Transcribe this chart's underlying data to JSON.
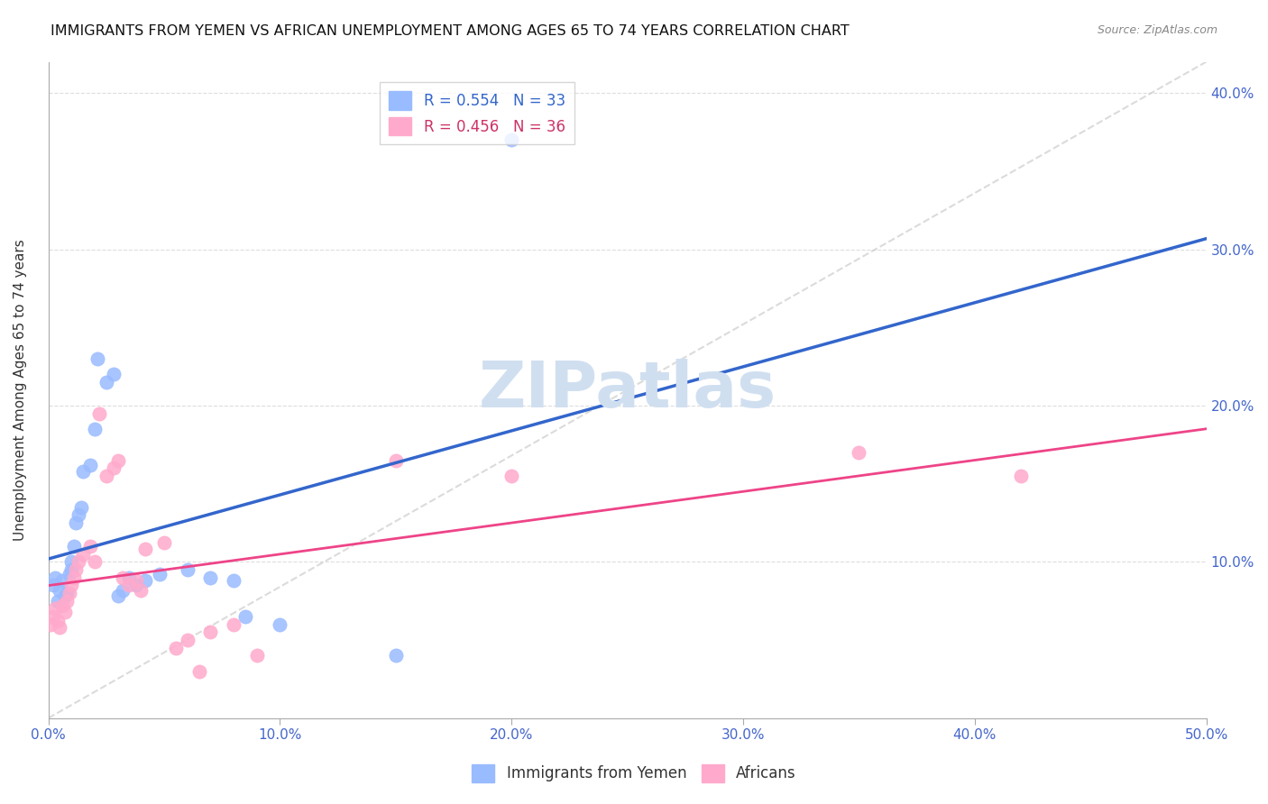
{
  "title": "IMMIGRANTS FROM YEMEN VS AFRICAN UNEMPLOYMENT AMONG AGES 65 TO 74 YEARS CORRELATION CHART",
  "source": "Source: ZipAtlas.com",
  "ylabel": "Unemployment Among Ages 65 to 74 years",
  "x_min": 0.0,
  "x_max": 0.5,
  "y_min": 0.0,
  "y_max": 0.42,
  "x_ticks": [
    0.0,
    0.1,
    0.2,
    0.3,
    0.4,
    0.5
  ],
  "x_tick_labels": [
    "0.0%",
    "10.0%",
    "20.0%",
    "30.0%",
    "40.0%",
    "50.0%"
  ],
  "y_ticks_right": [
    0.1,
    0.2,
    0.3,
    0.4
  ],
  "y_tick_labels_right": [
    "10.0%",
    "20.0%",
    "30.0%",
    "40.0%"
  ],
  "legend_label1": "R = 0.554   N = 33",
  "legend_label2": "R = 0.456   N = 36",
  "legend_label1_color": "#3366cc",
  "legend_label2_color": "#cc3366",
  "series1_color": "#99bbff",
  "series2_color": "#ffaacc",
  "line1_color": "#3366cc",
  "line2_color": "#ee4488",
  "diagonal_color": "#cccccc",
  "watermark": "ZIPatlas",
  "watermark_color": "#d0dff0",
  "series1_x": [
    0.002,
    0.003,
    0.004,
    0.005,
    0.006,
    0.007,
    0.008,
    0.009,
    0.01,
    0.01,
    0.011,
    0.012,
    0.013,
    0.014,
    0.015,
    0.018,
    0.02,
    0.021,
    0.025,
    0.028,
    0.03,
    0.032,
    0.035,
    0.038,
    0.042,
    0.048,
    0.06,
    0.07,
    0.08,
    0.085,
    0.1,
    0.15,
    0.2
  ],
  "series1_y": [
    0.085,
    0.09,
    0.075,
    0.082,
    0.088,
    0.078,
    0.08,
    0.092,
    0.095,
    0.1,
    0.11,
    0.125,
    0.13,
    0.135,
    0.158,
    0.162,
    0.185,
    0.23,
    0.215,
    0.22,
    0.078,
    0.082,
    0.09,
    0.085,
    0.088,
    0.092,
    0.095,
    0.09,
    0.088,
    0.065,
    0.06,
    0.04,
    0.37
  ],
  "series2_x": [
    0.001,
    0.002,
    0.003,
    0.004,
    0.005,
    0.006,
    0.007,
    0.008,
    0.009,
    0.01,
    0.011,
    0.012,
    0.013,
    0.015,
    0.018,
    0.02,
    0.022,
    0.025,
    0.028,
    0.03,
    0.032,
    0.035,
    0.038,
    0.04,
    0.042,
    0.05,
    0.055,
    0.06,
    0.065,
    0.07,
    0.08,
    0.09,
    0.15,
    0.2,
    0.35,
    0.42
  ],
  "series2_y": [
    0.06,
    0.065,
    0.07,
    0.062,
    0.058,
    0.072,
    0.068,
    0.075,
    0.08,
    0.085,
    0.09,
    0.095,
    0.1,
    0.105,
    0.11,
    0.1,
    0.195,
    0.155,
    0.16,
    0.165,
    0.09,
    0.085,
    0.088,
    0.082,
    0.108,
    0.112,
    0.045,
    0.05,
    0.03,
    0.055,
    0.06,
    0.04,
    0.165,
    0.155,
    0.17,
    0.155
  ],
  "background_color": "#ffffff",
  "grid_color": "#dddddd",
  "bottom_legend1": "Immigrants from Yemen",
  "bottom_legend2": "Africans"
}
